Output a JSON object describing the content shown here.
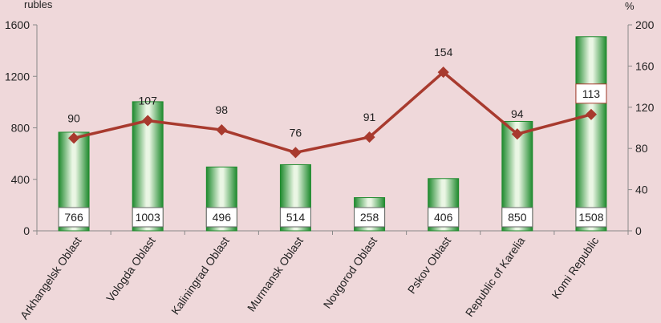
{
  "chart_data": {
    "type": "bar",
    "categories": [
      "Arkhangelsk Oblast",
      "Vologda Oblast",
      "Kaliningrad Oblast",
      "Murmansk Oblast",
      "Novgorod Oblast",
      "Pskov Oblast",
      "Republic of Karelia",
      "Komi Republic"
    ],
    "series": [
      {
        "axis": "left",
        "type": "bar",
        "values": [
          766,
          1003,
          496,
          514,
          258,
          406,
          850,
          1508
        ]
      },
      {
        "axis": "right",
        "type": "line",
        "values": [
          90,
          107,
          98,
          76,
          91,
          154,
          94,
          113
        ]
      }
    ],
    "yleft_label": "rubles",
    "yright_label": "%",
    "yleft_lim": [
      0,
      1600
    ],
    "yright_lim": [
      0,
      200
    ],
    "yleft_ticks": [
      "0",
      "400",
      "800",
      "1200",
      "1600"
    ],
    "yright_ticks": [
      "0",
      "40",
      "80",
      "120",
      "160",
      "200"
    ],
    "grid": false,
    "colors": {
      "bar_edge": "#1f8a2e",
      "bar_light": "#eaf6e4",
      "line": "#a83a2e",
      "marker": "#a83a2e",
      "background": "#efd8da"
    }
  }
}
